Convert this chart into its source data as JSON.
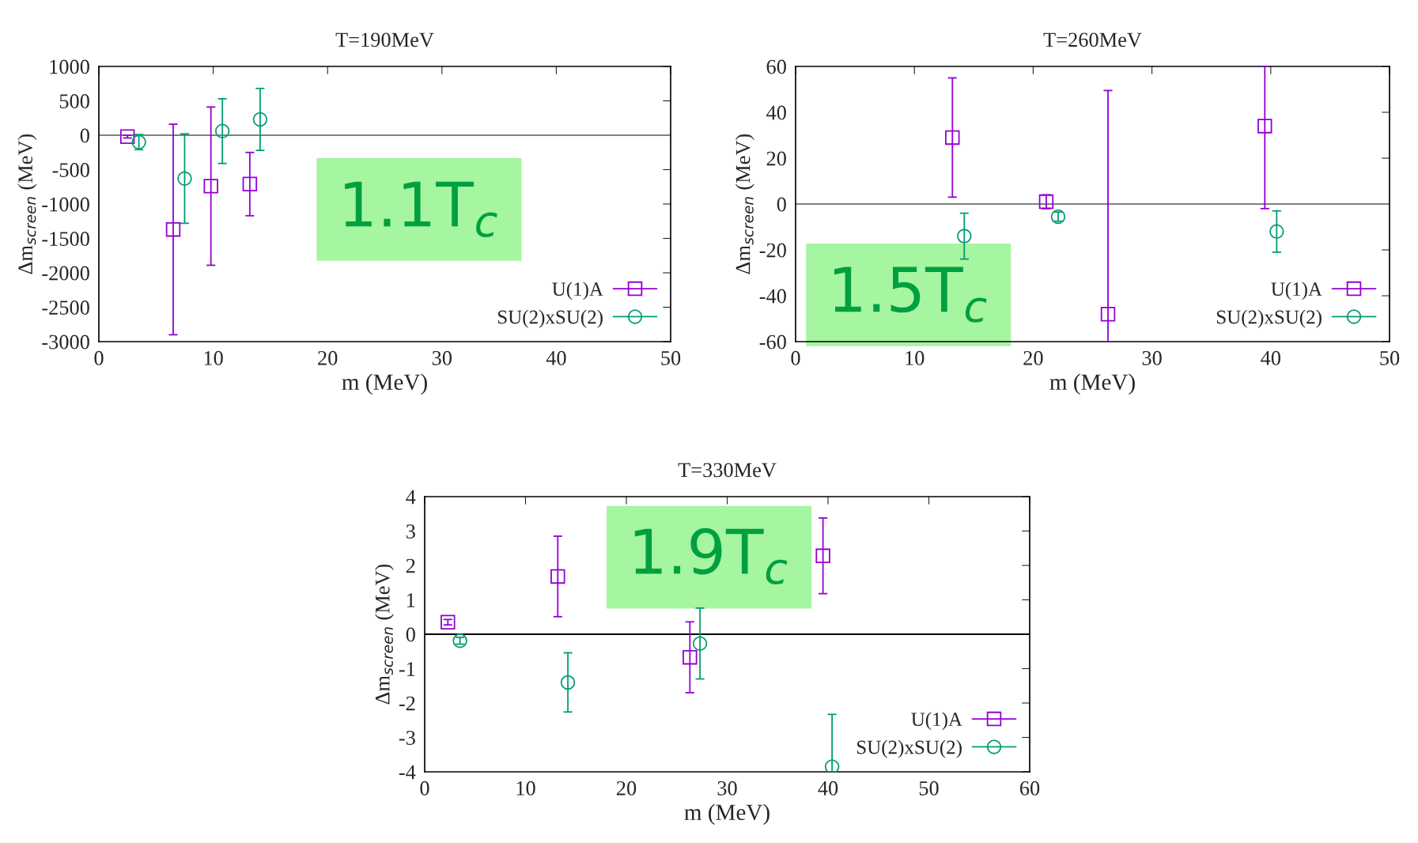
{
  "chart_data": [
    {
      "type": "scatter",
      "title": "T=190MeV",
      "xlabel": "m (MeV)",
      "ylabel": "Δm$_{screen}$ (MeV)",
      "xlim": [
        0,
        50
      ],
      "xticks": [
        0,
        10,
        20,
        30,
        40,
        50
      ],
      "ylim": [
        -3000,
        1000
      ],
      "yticks": [
        -3000,
        -2500,
        -2000,
        -1500,
        -1000,
        -500,
        0,
        500,
        1000
      ],
      "legend": "bottom right",
      "grid": false,
      "ref_lines": [
        {
          "axis": "y",
          "value": 0,
          "color": "#808080"
        }
      ],
      "annotations": [
        "1.1T$_{c}$"
      ],
      "series": [
        {
          "name": "U(1)A",
          "color": "#9400d3",
          "marker": "square",
          "x": [
            2.5,
            6.5,
            9.8,
            13.2
          ],
          "values": [
            -20,
            -1370,
            -740,
            -710
          ],
          "errors": [
            20,
            1530,
            1150,
            460
          ]
        },
        {
          "name": "SU(2)xSU(2)",
          "color": "#009e73",
          "marker": "circle",
          "x": [
            3.5,
            7.5,
            10.8,
            14.1
          ],
          "values": [
            -100,
            -630,
            60,
            230
          ],
          "errors": [
            110,
            650,
            470,
            450
          ]
        }
      ]
    },
    {
      "type": "scatter",
      "title": "T=260MeV",
      "xlabel": "m (MeV)",
      "ylabel": "Δm$_{screen}$ (MeV)",
      "xlim": [
        0,
        50
      ],
      "xticks": [
        0,
        10,
        20,
        30,
        40,
        50
      ],
      "ylim": [
        -60,
        60
      ],
      "yticks": [
        -60,
        -40,
        -20,
        0,
        20,
        40,
        60
      ],
      "legend": "bottom right",
      "grid": false,
      "ref_lines": [
        {
          "axis": "y",
          "value": 0,
          "color": "#808080"
        }
      ],
      "annotations": [
        "1.5T$_{c}$"
      ],
      "series": [
        {
          "name": "U(1)A",
          "color": "#9400d3",
          "marker": "square",
          "x": [
            13.2,
            21.1,
            26.3,
            39.5
          ],
          "values": [
            29,
            1,
            -48,
            34
          ],
          "errors": [
            26,
            3,
            [
              -60,
              49.5
            ],
            [
              -2,
              60
            ]
          ]
        },
        {
          "name": "SU(2)xSU(2)",
          "color": "#009e73",
          "marker": "circle",
          "x": [
            14.2,
            22.1,
            40.5
          ],
          "values": [
            -14,
            -5.5,
            -12
          ],
          "errors": [
            10,
            2,
            9
          ]
        }
      ]
    },
    {
      "type": "scatter",
      "title": "T=330MeV",
      "xlabel": "m (MeV)",
      "ylabel": "Δm$_{screen}$ (MeV)",
      "xlim": [
        0,
        60
      ],
      "xticks": [
        0,
        10,
        20,
        30,
        40,
        50,
        60
      ],
      "ylim": [
        -4,
        4
      ],
      "yticks": [
        -4,
        -3,
        -2,
        -1,
        0,
        1,
        2,
        3,
        4
      ],
      "legend": "bottom right",
      "grid": false,
      "ref_lines": [
        {
          "axis": "y",
          "value": 0,
          "color": "#000000"
        }
      ],
      "annotations": [
        "1.9T$_{c}$"
      ],
      "series": [
        {
          "name": "U(1)A",
          "color": "#9400d3",
          "marker": "square",
          "x": [
            2.3,
            13.2,
            26.3,
            39.5
          ],
          "values": [
            0.35,
            1.68,
            -0.67,
            2.28
          ],
          "errors": [
            0.08,
            1.17,
            1.03,
            1.1
          ]
        },
        {
          "name": "SU(2)xSU(2)",
          "color": "#009e73",
          "marker": "circle",
          "x": [
            3.5,
            14.2,
            27.3,
            40.4
          ],
          "values": [
            -0.19,
            -1.4,
            -0.27,
            -3.85
          ],
          "errors": [
            0.1,
            0.86,
            1.03,
            [
              -4,
              -2.33
            ]
          ]
        }
      ]
    }
  ]
}
